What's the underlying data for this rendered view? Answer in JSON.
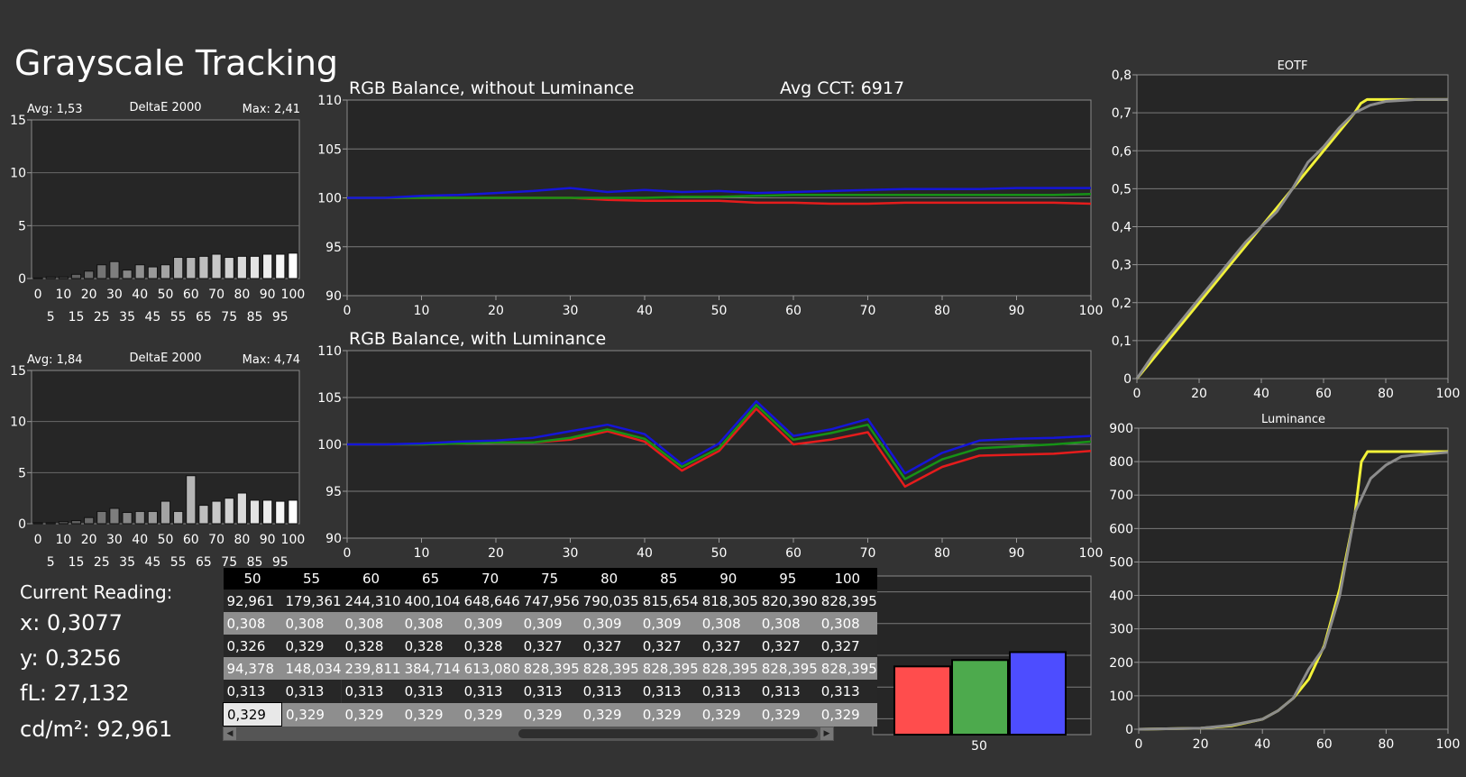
{
  "title": "Grayscale Tracking",
  "reading": {
    "heading": "Current Reading:",
    "x": "x: 0,3077",
    "y": "y: 0,3256",
    "fl": "fL: 27,132",
    "cd": "cd/m²: 92,961"
  },
  "table": {
    "headers": [
      "50",
      "55",
      "60",
      "65",
      "70",
      "75",
      "80",
      "85",
      "90",
      "95",
      "100"
    ],
    "rows": [
      {
        "style": "dark",
        "cells": [
          "92,961",
          "179,361",
          "244,310",
          "400,104",
          "648,646",
          "747,956",
          "790,035",
          "815,654",
          "818,305",
          "820,390",
          "828,395"
        ]
      },
      {
        "style": "light",
        "cells": [
          "0,308",
          "0,308",
          "0,308",
          "0,308",
          "0,309",
          "0,309",
          "0,309",
          "0,309",
          "0,308",
          "0,308",
          "0,308"
        ]
      },
      {
        "style": "dark",
        "cells": [
          "0,326",
          "0,329",
          "0,328",
          "0,328",
          "0,328",
          "0,327",
          "0,327",
          "0,327",
          "0,327",
          "0,327",
          "0,327"
        ]
      },
      {
        "style": "light",
        "cells": [
          "94,378",
          "148,034",
          "239,811",
          "384,714",
          "613,080",
          "828,395",
          "828,395",
          "828,395",
          "828,395",
          "828,395",
          "828,395"
        ]
      },
      {
        "style": "dark",
        "cells": [
          "0,313",
          "0,313",
          "0,313",
          "0,313",
          "0,313",
          "0,313",
          "0,313",
          "0,313",
          "0,313",
          "0,313",
          "0,313"
        ]
      },
      {
        "style": "light",
        "cells": [
          "0,329",
          "0,329",
          "0,329",
          "0,329",
          "0,329",
          "0,329",
          "0,329",
          "0,329",
          "0,329",
          "0,329",
          "0,329"
        ]
      }
    ],
    "selected_cell": [
      5,
      0
    ]
  },
  "colors": {
    "red": "#e51c1c",
    "green": "#169216",
    "blue": "#1515d8",
    "yellow": "#f2f239",
    "gray": "#8c8c8c"
  },
  "chart_data": [
    {
      "id": "de1",
      "type": "bar",
      "title": "DeltaE 2000",
      "avg_label": "Avg: 1,53",
      "max_label": "Max: 2,41",
      "ylim": [
        0,
        15
      ],
      "yticks": [
        "0",
        "5",
        "10",
        "15"
      ],
      "tick_top": [
        "0",
        "10",
        "20",
        "30",
        "40",
        "50",
        "60",
        "70",
        "80",
        "90",
        "100"
      ],
      "tick_bottom": [
        "5",
        "15",
        "25",
        "35",
        "45",
        "55",
        "65",
        "75",
        "85",
        "95"
      ],
      "categories": [
        0,
        5,
        10,
        15,
        20,
        25,
        30,
        35,
        40,
        45,
        50,
        55,
        60,
        65,
        70,
        75,
        80,
        85,
        90,
        95,
        100
      ],
      "values": [
        0.05,
        0.15,
        0.15,
        0.4,
        0.7,
        1.3,
        1.6,
        0.8,
        1.3,
        1.1,
        1.3,
        2.0,
        2.0,
        2.1,
        2.3,
        2.0,
        2.1,
        2.1,
        2.3,
        2.3,
        2.4
      ]
    },
    {
      "id": "de2",
      "type": "bar",
      "title": "DeltaE 2000",
      "avg_label": "Avg: 1,84",
      "max_label": "Max: 4,74",
      "ylim": [
        0,
        15
      ],
      "yticks": [
        "0",
        "5",
        "10",
        "15"
      ],
      "tick_top": [
        "0",
        "10",
        "20",
        "30",
        "40",
        "50",
        "60",
        "70",
        "80",
        "90",
        "100"
      ],
      "tick_bottom": [
        "5",
        "15",
        "25",
        "35",
        "45",
        "55",
        "65",
        "75",
        "85",
        "95"
      ],
      "categories": [
        0,
        5,
        10,
        15,
        20,
        25,
        30,
        35,
        40,
        45,
        50,
        55,
        60,
        65,
        70,
        75,
        80,
        85,
        90,
        95,
        100
      ],
      "values": [
        0.1,
        0.1,
        0.2,
        0.3,
        0.6,
        1.2,
        1.5,
        1.1,
        1.2,
        1.2,
        2.2,
        1.2,
        4.7,
        1.8,
        2.2,
        2.5,
        3.0,
        2.3,
        2.3,
        2.2,
        2.3
      ]
    },
    {
      "id": "rgb1",
      "type": "line",
      "title": "RGB Balance, without Luminance",
      "extra": "Avg CCT: 6917",
      "xlim": [
        0,
        100
      ],
      "ylim": [
        90,
        110
      ],
      "xticks": [
        "0",
        "10",
        "20",
        "30",
        "40",
        "50",
        "60",
        "70",
        "80",
        "90",
        "100"
      ],
      "yticks": [
        "90",
        "95",
        "100",
        "105",
        "110"
      ],
      "x": [
        0,
        5,
        10,
        15,
        20,
        25,
        30,
        35,
        40,
        45,
        50,
        55,
        60,
        65,
        70,
        75,
        80,
        85,
        90,
        95,
        100
      ],
      "series": [
        {
          "color": "red",
          "values": [
            100,
            100,
            100,
            100,
            100,
            100,
            100,
            99.8,
            99.7,
            99.7,
            99.7,
            99.5,
            99.5,
            99.4,
            99.4,
            99.5,
            99.5,
            99.5,
            99.5,
            99.5,
            99.4
          ]
        },
        {
          "color": "green",
          "values": [
            100,
            100,
            100,
            100,
            100,
            100,
            100,
            100,
            100,
            100.1,
            100.1,
            100.2,
            100.3,
            100.3,
            100.3,
            100.3,
            100.3,
            100.3,
            100.3,
            100.3,
            100.4
          ]
        },
        {
          "color": "blue",
          "values": [
            100,
            100,
            100.2,
            100.3,
            100.5,
            100.7,
            101,
            100.6,
            100.8,
            100.6,
            100.7,
            100.5,
            100.6,
            100.7,
            100.8,
            100.9,
            100.9,
            100.9,
            101,
            101,
            101
          ]
        }
      ]
    },
    {
      "id": "rgb2",
      "type": "line",
      "title": "RGB Balance, with Luminance",
      "xlim": [
        0,
        100
      ],
      "ylim": [
        90,
        110
      ],
      "xticks": [
        "0",
        "10",
        "20",
        "30",
        "40",
        "50",
        "60",
        "70",
        "80",
        "90",
        "100"
      ],
      "yticks": [
        "90",
        "95",
        "100",
        "105",
        "110"
      ],
      "x": [
        0,
        5,
        10,
        15,
        20,
        25,
        30,
        35,
        40,
        45,
        50,
        55,
        60,
        65,
        70,
        75,
        80,
        85,
        90,
        95,
        100
      ],
      "series": [
        {
          "color": "red",
          "values": [
            100,
            100,
            100,
            100.1,
            100.2,
            100.2,
            100.5,
            101.4,
            100.3,
            97.2,
            99.3,
            103.8,
            100.0,
            100.5,
            101.3,
            95.5,
            97.6,
            98.8,
            98.9,
            99.0,
            99.3
          ]
        },
        {
          "color": "green",
          "values": [
            100,
            100,
            100,
            100.1,
            100.2,
            100.2,
            100.7,
            101.6,
            100.6,
            97.6,
            99.6,
            104.2,
            100.5,
            101.2,
            102.1,
            96.3,
            98.4,
            99.6,
            99.8,
            100.0,
            100.3
          ]
        },
        {
          "color": "blue",
          "values": [
            100,
            100,
            100.1,
            100.3,
            100.4,
            100.7,
            101.4,
            102.1,
            101.1,
            97.9,
            100.1,
            104.6,
            100.9,
            101.6,
            102.7,
            96.9,
            99.1,
            100.4,
            100.6,
            100.7,
            100.9
          ]
        }
      ]
    },
    {
      "id": "eotf",
      "type": "line",
      "title": "EOTF",
      "xlim": [
        0,
        100
      ],
      "ylim": [
        0,
        0.8
      ],
      "xticks": [
        "0",
        "20",
        "40",
        "60",
        "80",
        "100"
      ],
      "yticks": [
        "0",
        "0,1",
        "0,2",
        "0,3",
        "0,4",
        "0,5",
        "0,6",
        "0,7",
        "0,8"
      ],
      "series": [
        {
          "color": "yellow",
          "x": [
            0,
            5,
            10,
            15,
            20,
            25,
            30,
            35,
            40,
            45,
            50,
            55,
            60,
            65,
            70,
            72,
            74,
            80,
            90,
            100
          ],
          "values": [
            0,
            0.05,
            0.1,
            0.15,
            0.2,
            0.25,
            0.3,
            0.35,
            0.4,
            0.45,
            0.5,
            0.55,
            0.6,
            0.65,
            0.7,
            0.725,
            0.735,
            0.735,
            0.735,
            0.735
          ]
        },
        {
          "color": "gray",
          "x": [
            0,
            5,
            10,
            15,
            20,
            25,
            30,
            35,
            40,
            45,
            50,
            55,
            60,
            65,
            70,
            75,
            80,
            90,
            100
          ],
          "values": [
            0,
            0.06,
            0.11,
            0.16,
            0.21,
            0.26,
            0.31,
            0.36,
            0.4,
            0.44,
            0.5,
            0.57,
            0.61,
            0.66,
            0.7,
            0.72,
            0.73,
            0.735,
            0.735
          ]
        }
      ]
    },
    {
      "id": "lum",
      "type": "line",
      "title": "Luminance",
      "xlim": [
        0,
        100
      ],
      "ylim": [
        0,
        900
      ],
      "xticks": [
        "0",
        "20",
        "40",
        "60",
        "80",
        "100"
      ],
      "yticks": [
        "0",
        "100",
        "200",
        "300",
        "400",
        "500",
        "600",
        "700",
        "800",
        "900"
      ],
      "series": [
        {
          "color": "yellow",
          "x": [
            0,
            20,
            30,
            40,
            45,
            50,
            55,
            60,
            65,
            70,
            72,
            74,
            80,
            90,
            100
          ],
          "values": [
            0,
            3,
            10,
            30,
            55,
            93,
            150,
            250,
            420,
            650,
            800,
            830,
            830,
            830,
            830
          ]
        },
        {
          "color": "gray",
          "x": [
            0,
            20,
            30,
            40,
            45,
            50,
            55,
            60,
            65,
            70,
            75,
            80,
            85,
            90,
            100
          ],
          "values": [
            0,
            3,
            12,
            30,
            55,
            93,
            180,
            245,
            400,
            650,
            750,
            790,
            815,
            820,
            828
          ]
        }
      ]
    },
    {
      "id": "rgbbar",
      "type": "bar",
      "xlabel_value": "50",
      "ylim": [
        95,
        105
      ],
      "yticks": [
        "96",
        "98",
        "100",
        "102",
        "104"
      ],
      "series": [
        {
          "color": "red",
          "value": 99.3
        },
        {
          "color": "green",
          "value": 99.7
        },
        {
          "color": "blue",
          "value": 100.2
        }
      ]
    }
  ]
}
